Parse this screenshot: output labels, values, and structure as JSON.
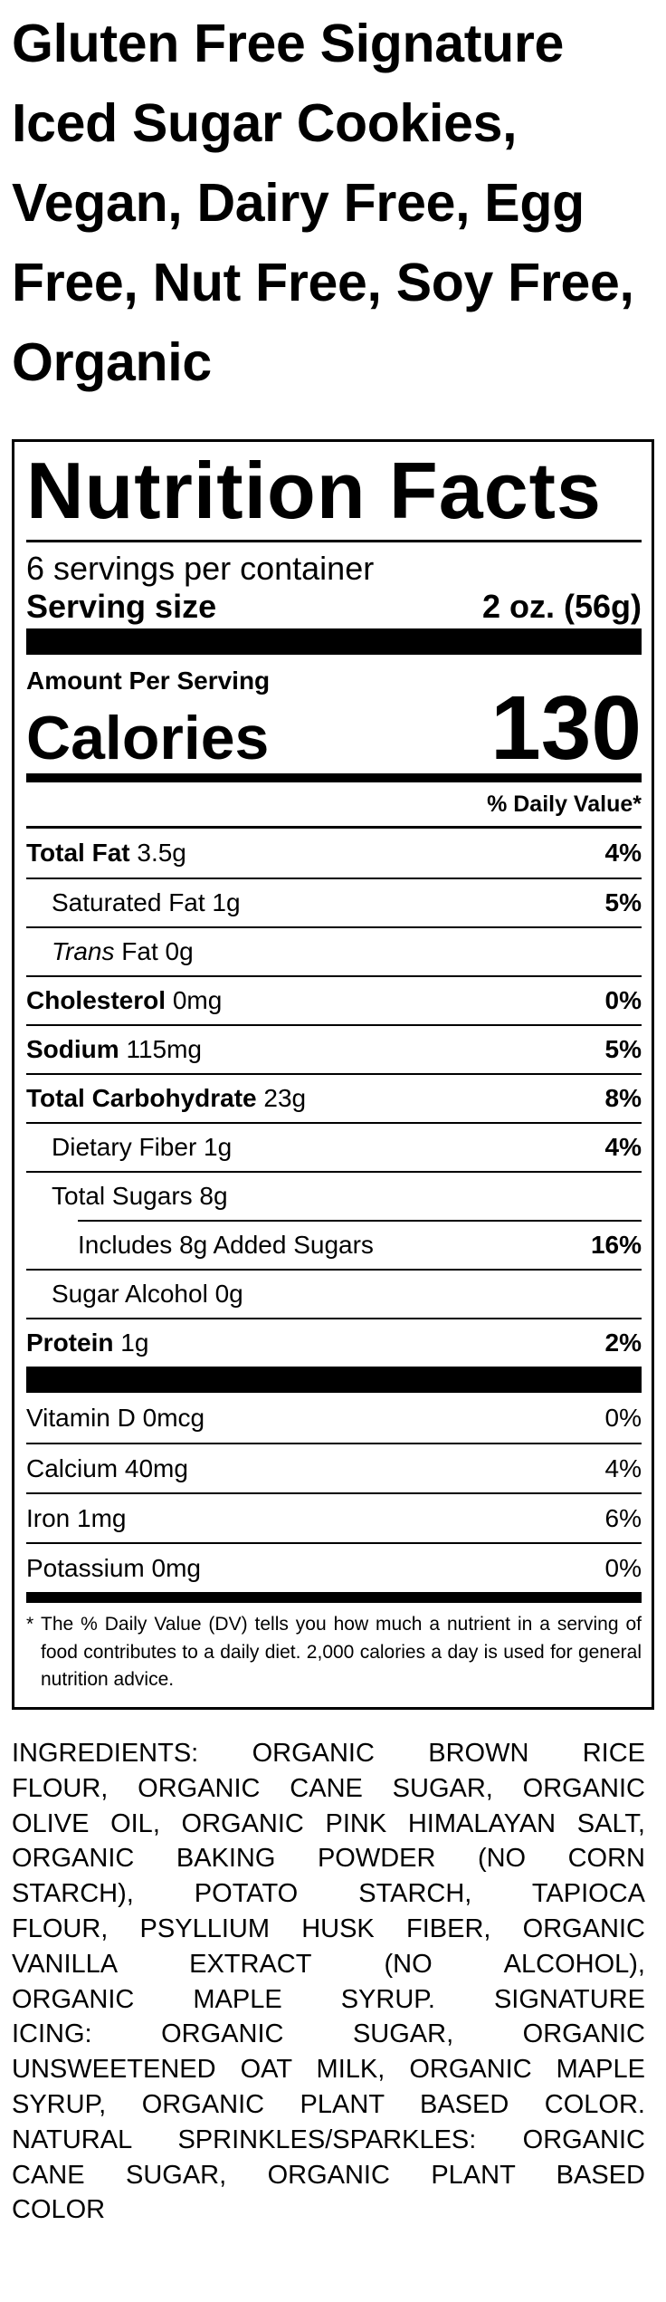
{
  "product_title": "Gluten Free Signature Iced Sugar Cookies, Vegan, Dairy Free, Egg Free, Nut Free, Soy Free, Organic",
  "label": {
    "title": "Nutrition Facts",
    "servings_per_container": "6 servings per container",
    "serving_size_label": "Serving size",
    "serving_size_value": "2 oz. (56g)",
    "amount_per_serving": "Amount Per Serving",
    "calories_label": "Calories",
    "calories_value": "130",
    "daily_value_header": "% Daily Value*",
    "nutrients": [
      {
        "name": "Total Fat",
        "amount": "3.5g",
        "dv": "4%"
      },
      {
        "name": "Saturated Fat 1g",
        "amount": "",
        "dv": "5%"
      },
      {
        "name": "Trans",
        "amount": "Fat 0g",
        "dv": ""
      },
      {
        "name": "Cholesterol",
        "amount": "0mg",
        "dv": "0%"
      },
      {
        "name": "Sodium",
        "amount": "115mg",
        "dv": "5%"
      },
      {
        "name": "Total Carbohydrate",
        "amount": "23g",
        "dv": "8%"
      },
      {
        "name": "Dietary Fiber 1g",
        "amount": "",
        "dv": "4%"
      },
      {
        "name": "Total Sugars 8g",
        "amount": "",
        "dv": ""
      },
      {
        "name": "Includes 8g Added Sugars",
        "amount": "",
        "dv": "16%"
      },
      {
        "name": "Sugar Alcohol 0g",
        "amount": "",
        "dv": ""
      },
      {
        "name": "Protein",
        "amount": "1g",
        "dv": "2%"
      }
    ],
    "vitamins": [
      {
        "name": "Vitamin D 0mcg",
        "dv": "0%"
      },
      {
        "name": "Calcium 40mg",
        "dv": "4%"
      },
      {
        "name": "Iron 1mg",
        "dv": "6%"
      },
      {
        "name": "Potassium 0mg",
        "dv": "0%"
      }
    ],
    "footnote_marker": "*",
    "footnote": "The % Daily Value (DV) tells you how much a nutrient in a serving of food contributes to a daily diet. 2,000 calories a day is used for general nutrition advice."
  },
  "ingredients_lines": [
    "INGREDIENTS: ORGANIC BROWN RICE",
    "FLOUR, ORGANIC CANE SUGAR, ORGANIC",
    "OLIVE OIL, ORGANIC PINK HIMALAYAN SALT,",
    "ORGANIC BAKING POWDER (NO CORN",
    "STARCH), POTATO STARCH, TAPIOCA",
    "FLOUR, PSYLLIUM HUSK FIBER, ORGANIC",
    "VANILLA EXTRACT (NO ALCOHOL),",
    "ORGANIC MAPLE SYRUP. SIGNATURE",
    "ICING: ORGANIC SUGAR, ORGANIC",
    "UNSWEETENED OAT MILK, ORGANIC MAPLE",
    "SYRUP, ORGANIC PLANT BASED COLOR.",
    "NATURAL SPRINKLES/SPARKLES: ORGANIC",
    "CANE SUGAR, ORGANIC PLANT BASED",
    "COLOR"
  ],
  "colors": {
    "text": "#000000",
    "background": "#ffffff"
  }
}
